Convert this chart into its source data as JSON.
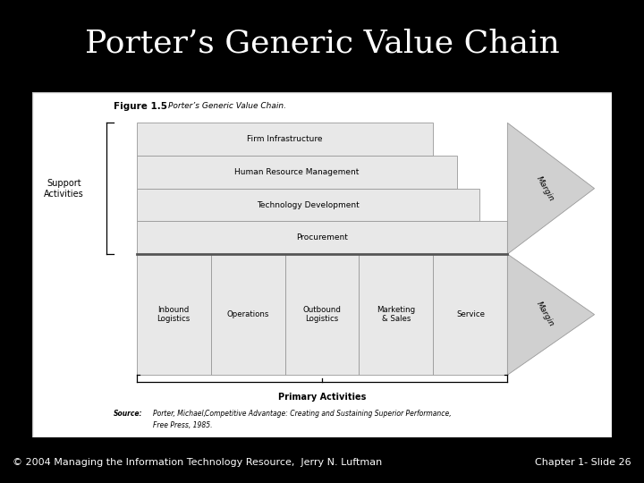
{
  "title": "Porter’s Generic Value Chain",
  "title_color": "#ffffff",
  "bg_color": "#000000",
  "content_bg": "#ffffff",
  "footer_bg": "#1a1a6e",
  "footer_text_left": "© 2004 Managing the Information Technology Resource,  Jerry N. Luftman",
  "footer_text_right": "Chapter 1- Slide 26",
  "figure_label": "Figure 1.5",
  "figure_subtitle": "Porter’s Generic Value Chain.",
  "support_label": "Support\nActivities",
  "primary_label": "Primary Activities",
  "support_rows": [
    "Firm Infrastructure",
    "Human Resource Management",
    "Technology Development",
    "Procurement"
  ],
  "primary_cols": [
    "Inbound\nLogistics",
    "Operations",
    "Outbound\nLogistics",
    "Marketing\n& Sales",
    "Service"
  ],
  "margin_label": "Margin",
  "source_line1_bold": "Source:",
  "source_line1_rest": " Porter, Michael, ",
  "source_line1_italic": "Competitive Advantage: Creating and Sustaining Superior Performance,",
  "source_line2": "Free Press, 1985.",
  "box_fill": "#e8e8e8",
  "box_stroke": "#999999",
  "margin_fill": "#d0d0d0",
  "margin_stroke": "#999999",
  "sep_color": "#555555",
  "content_border": "#bbbbbb",
  "title_fontsize": 26,
  "footer_fontsize": 8
}
